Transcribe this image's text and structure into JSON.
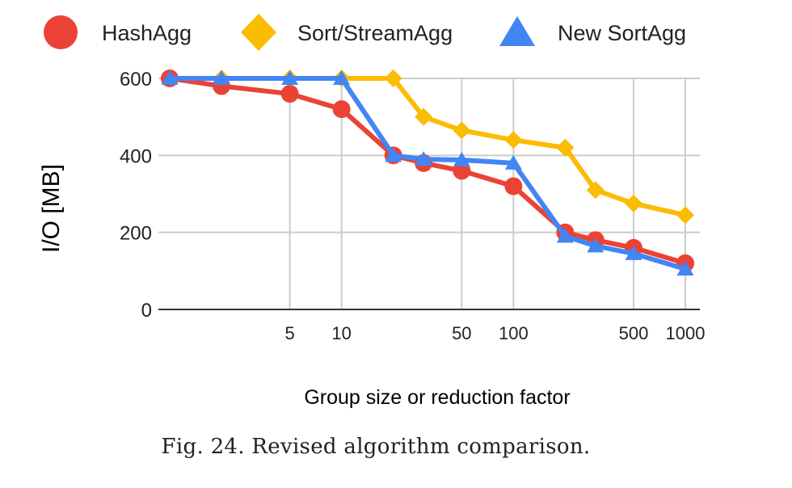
{
  "chart_data": {
    "type": "line",
    "xscale": "log",
    "x": [
      1,
      2,
      5,
      10,
      20,
      30,
      50,
      100,
      200,
      300,
      500,
      1000
    ],
    "xticks": [
      5,
      10,
      50,
      100,
      500,
      1000
    ],
    "xtick_labels": [
      "5",
      "10",
      "50",
      "100",
      "500",
      "1000"
    ],
    "yticks": [
      0,
      200,
      400,
      600
    ],
    "ytick_labels": [
      "0",
      "200",
      "400",
      "600"
    ],
    "ylim": [
      0,
      600
    ],
    "xlim": [
      1,
      1000
    ],
    "xlabel": "Group size or reduction factor",
    "ylabel": "I/O [MB]",
    "grid": true,
    "legend_position": "top",
    "series": [
      {
        "name": "HashAgg",
        "color": "#ea4335",
        "marker": "circle",
        "values": [
          600,
          580,
          560,
          520,
          400,
          380,
          360,
          320,
          200,
          180,
          160,
          120
        ]
      },
      {
        "name": "Sort/StreamAgg",
        "color": "#fbbc04",
        "marker": "diamond",
        "values": [
          600,
          600,
          600,
          600,
          600,
          500,
          465,
          440,
          420,
          310,
          275,
          245
        ]
      },
      {
        "name": "New SortAgg",
        "color": "#4285f4",
        "marker": "triangle",
        "values": [
          600,
          600,
          600,
          600,
          400,
          390,
          388,
          380,
          190,
          165,
          145,
          105
        ]
      }
    ]
  },
  "caption": "Fig. 24.  Revised algorithm comparison."
}
